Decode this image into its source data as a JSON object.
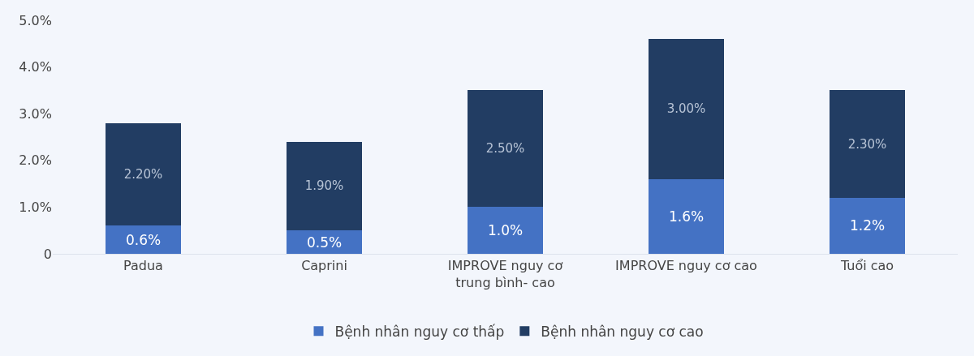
{
  "chart_data": {
    "type": "bar",
    "stacked": true,
    "categories": [
      "Padua",
      "Caprini",
      "IMPROVE nguy cơ trung bình- cao",
      "IMPROVE nguy cơ cao",
      "Tuổi cao"
    ],
    "series": [
      {
        "name": "Bệnh nhân nguy cơ thấp",
        "color": "#4472c4",
        "values": [
          0.6,
          0.5,
          1.0,
          1.6,
          1.2
        ],
        "value_labels": [
          "0.6%",
          "0.5%",
          "1.0%",
          "1.6%",
          "1.2%"
        ]
      },
      {
        "name": "Bệnh nhân nguy cơ cao",
        "color": "#223d63",
        "values": [
          2.2,
          1.9,
          2.5,
          3.0,
          2.3
        ],
        "value_labels": [
          "2.20%",
          "1.90%",
          "2.50%",
          "3.00%",
          "2.30%"
        ]
      }
    ],
    "ylim": [
      0,
      5
    ],
    "yticks": [
      0,
      {
        "value": 1,
        "label": "1.0%"
      },
      {
        "value": 2,
        "label": "2.0%"
      },
      {
        "value": 3,
        "label": "3.0%"
      },
      {
        "value": 4,
        "label": "4.0%"
      },
      {
        "value": 5,
        "label": "5.0%"
      }
    ],
    "grid": false,
    "legend": "bottom"
  }
}
